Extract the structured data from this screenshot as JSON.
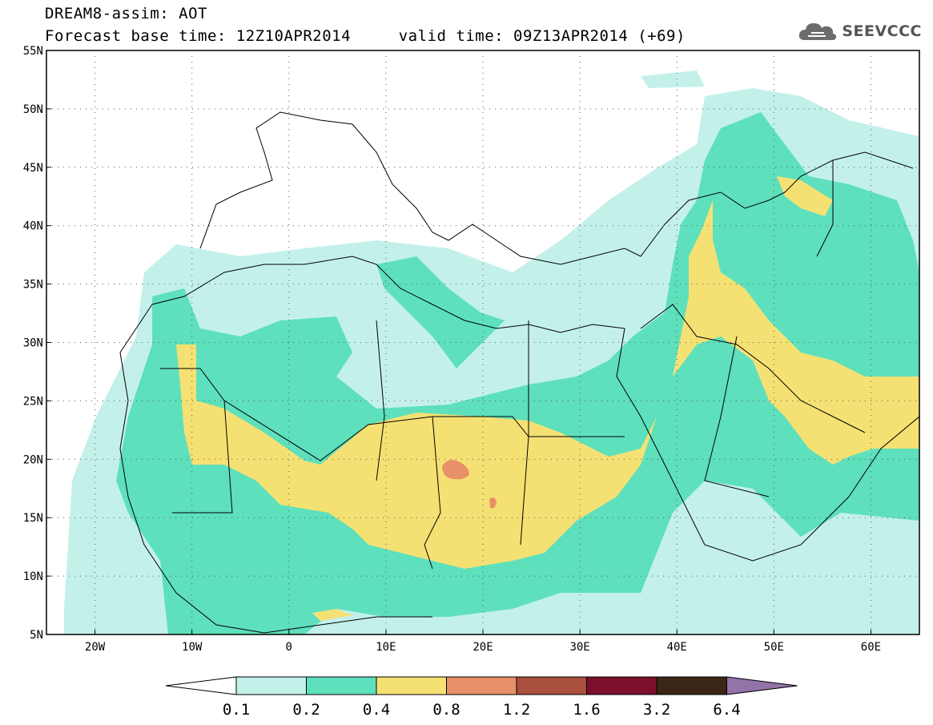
{
  "header": {
    "title_line1": "DREAM8-assim: AOT",
    "title_line2": "Forecast base time: 12Z10APR2014     valid time: 09Z13APR2014 (+69)",
    "logo_text": "SEEVCCC"
  },
  "map": {
    "lon_range": [
      -25,
      65
    ],
    "lat_range": [
      5,
      55
    ],
    "lon_ticks": [
      "20W",
      "10W",
      "0",
      "10E",
      "20E",
      "30E",
      "40E",
      "50E",
      "60E"
    ],
    "lat_ticks": [
      "5N",
      "10N",
      "15N",
      "20N",
      "25N",
      "30N",
      "35N",
      "40N",
      "45N",
      "50N",
      "55N"
    ],
    "grid": "dotted"
  },
  "colorbar": {
    "labels": [
      "0.1",
      "0.2",
      "0.4",
      "0.8",
      "1.2",
      "1.6",
      "3.2",
      "6.4"
    ],
    "colors": [
      "#ffffff",
      "#c3f1ea",
      "#5ee0bc",
      "#f5e173",
      "#e7906a",
      "#a94f3e",
      "#7b0f2c",
      "#3a2517",
      "#9473a8"
    ]
  }
}
